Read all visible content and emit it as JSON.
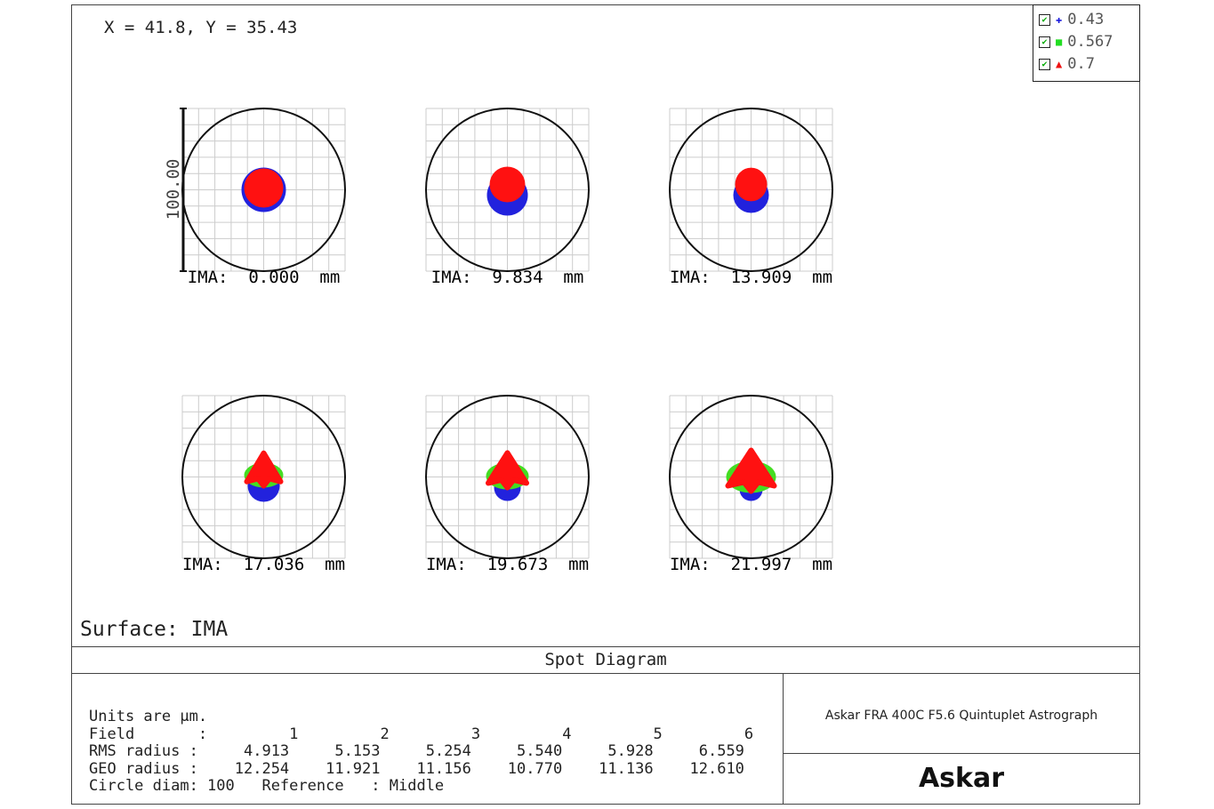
{
  "coordinate_readout": "X = 41.8, Y = 35.43",
  "legend": [
    {
      "label": "0.43",
      "color": "#1a1adc",
      "marker": "plus"
    },
    {
      "label": "0.567",
      "color": "#22dd22",
      "marker": "square"
    },
    {
      "label": "0.7",
      "color": "#ee1111",
      "marker": "triangle"
    }
  ],
  "scale_label": "100.00",
  "surface": "Surface: IMA",
  "title": "Spot Diagram",
  "info": "Askar FRA 400C F5.6 Quintuplet Astrograph",
  "logo": "Askar",
  "chart_data": {
    "type": "scatter",
    "title": "Spot Diagram",
    "wavelengths_um": [
      0.43,
      0.567,
      0.7
    ],
    "circle_diameter_um": 100,
    "fields": [
      {
        "ima": "IMA: 0.000 mm"
      },
      {
        "ima": "IMA: 9.834 mm"
      },
      {
        "ima": "IMA: 13.909 mm"
      },
      {
        "ima": "IMA: 17.036 mm"
      },
      {
        "ima": "IMA: 19.673 mm"
      },
      {
        "ima": "IMA: 21.997 mm"
      }
    ]
  },
  "stats": {
    "units": "Units are µm.",
    "field_label": "Field       :",
    "fields": [
      "1",
      "2",
      "3",
      "4",
      "5",
      "6"
    ],
    "rms_label": "RMS radius :",
    "rms": [
      "4.913",
      "5.153",
      "5.254",
      "5.540",
      "5.928",
      "6.559"
    ],
    "geo_label": "GEO radius :",
    "geo": [
      "12.254",
      "11.921",
      "11.156",
      "10.770",
      "11.136",
      "12.610"
    ],
    "circle": "Circle diam: 100",
    "reference": "Reference   : Middle"
  }
}
